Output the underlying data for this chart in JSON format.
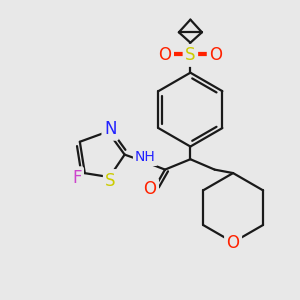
{
  "bg_color": "#e8e8e8",
  "bond_color": "#1a1a1a",
  "bond_width": 1.6,
  "atom_colors": {
    "O": "#ff2200",
    "S_sulfonyl": "#cccc00",
    "S_thiazole": "#cccc00",
    "N": "#2222ff",
    "F": "#cc44cc",
    "H": "#4a8a8a"
  },
  "font_size_atom": 11,
  "fig_size": [
    3.0,
    3.0
  ],
  "dpi": 100,
  "xlim": [
    20,
    280
  ],
  "ylim": [
    20,
    280
  ]
}
